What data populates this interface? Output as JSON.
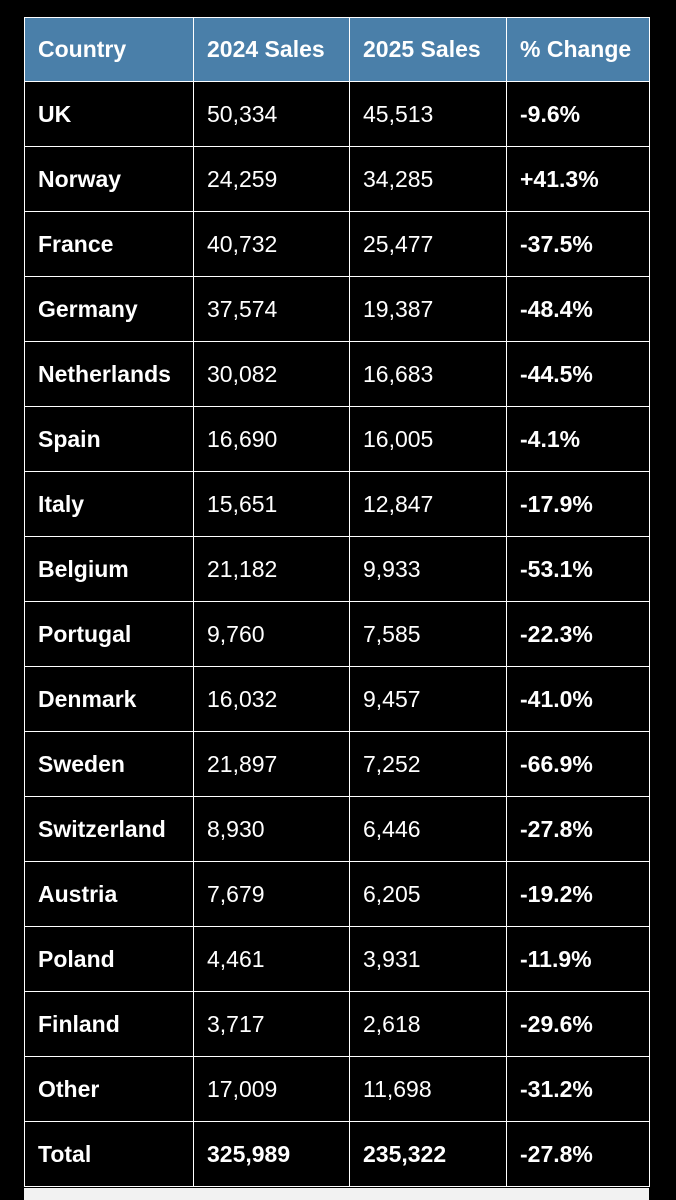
{
  "chart_data": {
    "type": "table",
    "columns": [
      "Country",
      "2024 Sales",
      "2025 Sales",
      "% Change"
    ],
    "rows": [
      {
        "country": "UK",
        "sales_2024": "50,334",
        "sales_2025": "45,513",
        "change": "-9.6%"
      },
      {
        "country": "Norway",
        "sales_2024": "24,259",
        "sales_2025": "34,285",
        "change": "+41.3%"
      },
      {
        "country": "France",
        "sales_2024": "40,732",
        "sales_2025": "25,477",
        "change": "-37.5%"
      },
      {
        "country": "Germany",
        "sales_2024": "37,574",
        "sales_2025": "19,387",
        "change": "-48.4%"
      },
      {
        "country": "Netherlands",
        "sales_2024": "30,082",
        "sales_2025": "16,683",
        "change": "-44.5%"
      },
      {
        "country": "Spain",
        "sales_2024": "16,690",
        "sales_2025": "16,005",
        "change": "-4.1%"
      },
      {
        "country": "Italy",
        "sales_2024": "15,651",
        "sales_2025": "12,847",
        "change": "-17.9%"
      },
      {
        "country": "Belgium",
        "sales_2024": "21,182",
        "sales_2025": "9,933",
        "change": "-53.1%"
      },
      {
        "country": "Portugal",
        "sales_2024": "9,760",
        "sales_2025": "7,585",
        "change": "-22.3%"
      },
      {
        "country": "Denmark",
        "sales_2024": "16,032",
        "sales_2025": "9,457",
        "change": "-41.0%"
      },
      {
        "country": "Sweden",
        "sales_2024": "21,897",
        "sales_2025": "7,252",
        "change": "-66.9%"
      },
      {
        "country": "Switzerland",
        "sales_2024": "8,930",
        "sales_2025": "6,446",
        "change": "-27.8%"
      },
      {
        "country": "Austria",
        "sales_2024": "7,679",
        "sales_2025": "6,205",
        "change": "-19.2%"
      },
      {
        "country": "Poland",
        "sales_2024": "4,461",
        "sales_2025": "3,931",
        "change": "-11.9%"
      },
      {
        "country": "Finland",
        "sales_2024": "3,717",
        "sales_2025": "2,618",
        "change": "-29.6%"
      },
      {
        "country": "Other",
        "sales_2024": "17,009",
        "sales_2025": "11,698",
        "change": "-31.2%"
      }
    ],
    "total": {
      "country": "Total",
      "sales_2024": "325,989",
      "sales_2025": "235,322",
      "change": "-27.8%"
    }
  },
  "colors": {
    "header_bg": "#4a7fa9",
    "body_bg": "#000000",
    "text": "#ffffff",
    "border": "#ffffff"
  }
}
